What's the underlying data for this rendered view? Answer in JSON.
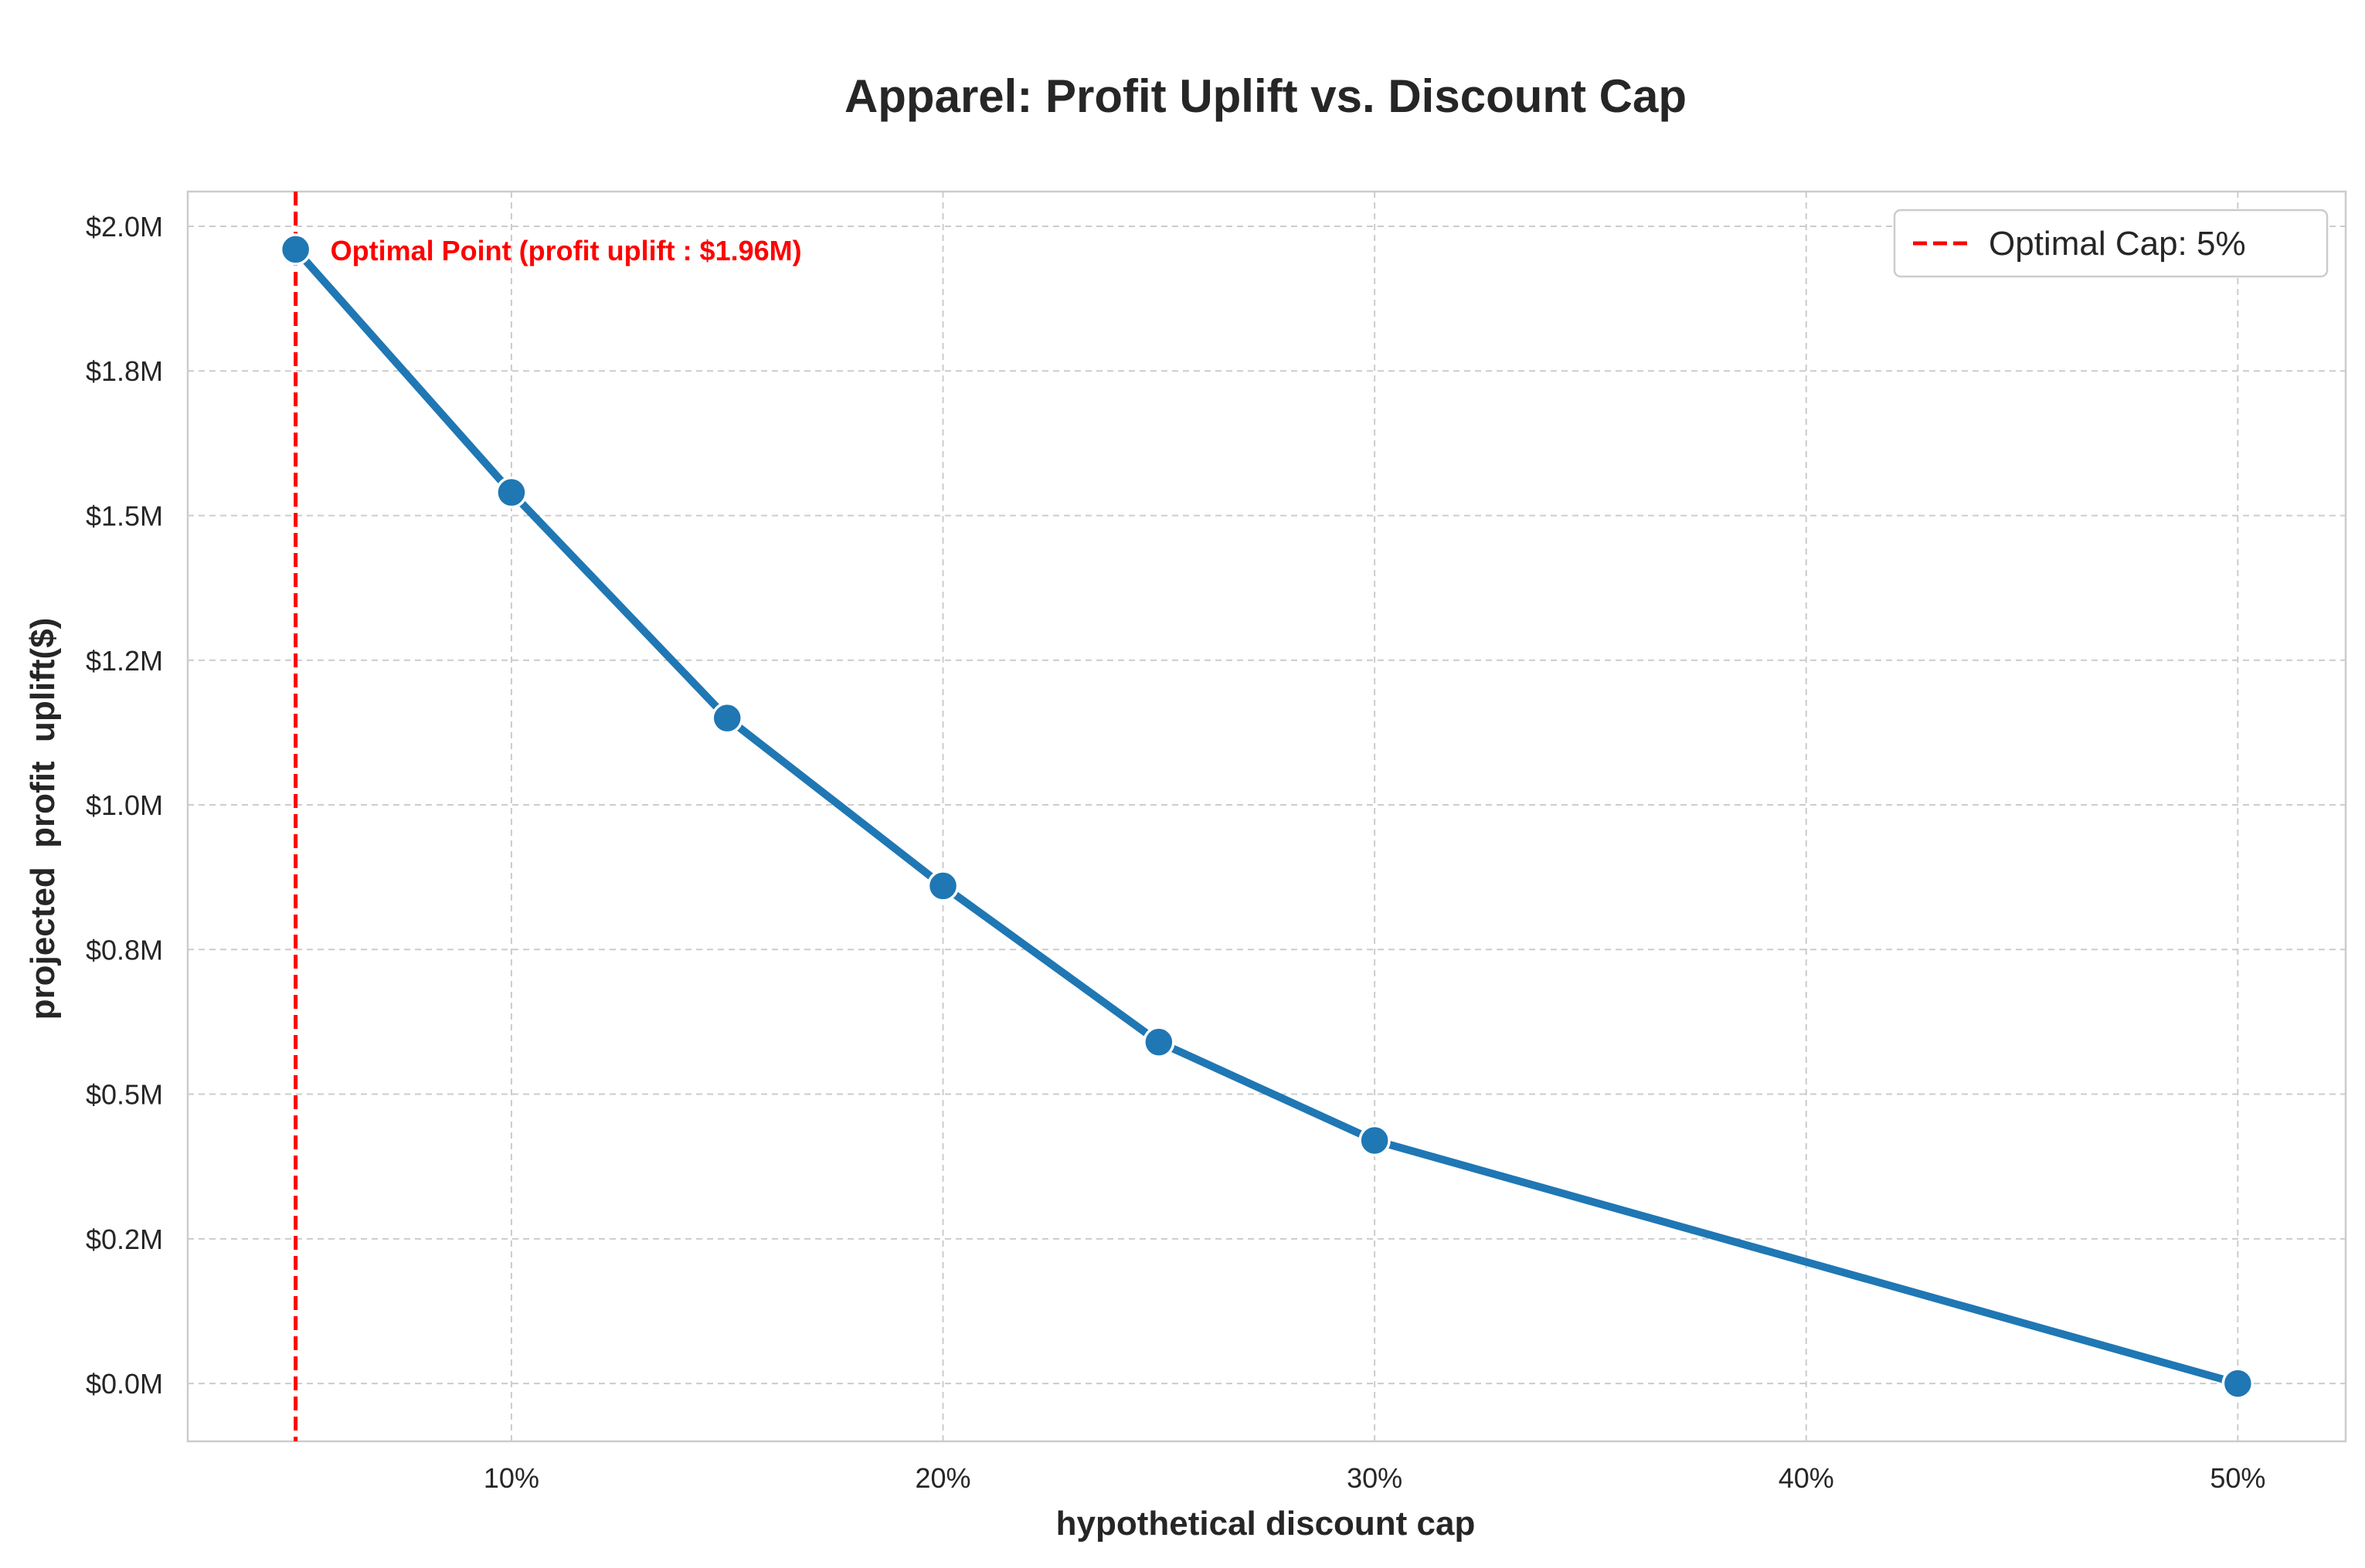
{
  "chart_data": {
    "type": "line",
    "title": "Apparel: Profit Uplift vs. Discount Cap",
    "xlabel": "hypothetical discount cap",
    "ylabel": "projected  profit  uplift($)",
    "x": [
      5,
      10,
      15,
      20,
      25,
      30,
      50
    ],
    "series": [
      {
        "values": [
          1.96,
          1.54,
          1.15,
          0.86,
          0.59,
          0.42,
          0.0
        ],
        "color": "#1f77b4"
      }
    ],
    "xlim": [
      2.5,
      52.5
    ],
    "ylim": [
      -0.1,
      2.06
    ],
    "xticks": [
      10,
      20,
      30,
      40,
      50
    ],
    "xtick_labels": [
      "10%",
      "20%",
      "30%",
      "40%",
      "50%"
    ],
    "yticks": [
      0.0,
      0.25,
      0.5,
      0.75,
      1.0,
      1.25,
      1.5,
      1.75,
      2.0
    ],
    "ytick_labels": [
      "$0.0M",
      "$0.2M",
      "$0.5M",
      "$0.8M",
      "$1.0M",
      "$1.2M",
      "$1.5M",
      "$1.8M",
      "$2.0M"
    ],
    "grid": true,
    "reference_line": {
      "x": 5,
      "style": "dashed",
      "color": "#ff0000"
    },
    "annotation": {
      "text": "Optimal Point (profit uplift : $1.96M)",
      "x": 5,
      "y": 1.96,
      "color": "#ff0000"
    },
    "legend": {
      "position": "top-right",
      "entries": [
        {
          "label": "Optimal Cap: 5%",
          "style": "dashed",
          "color": "#ff0000"
        }
      ]
    }
  }
}
